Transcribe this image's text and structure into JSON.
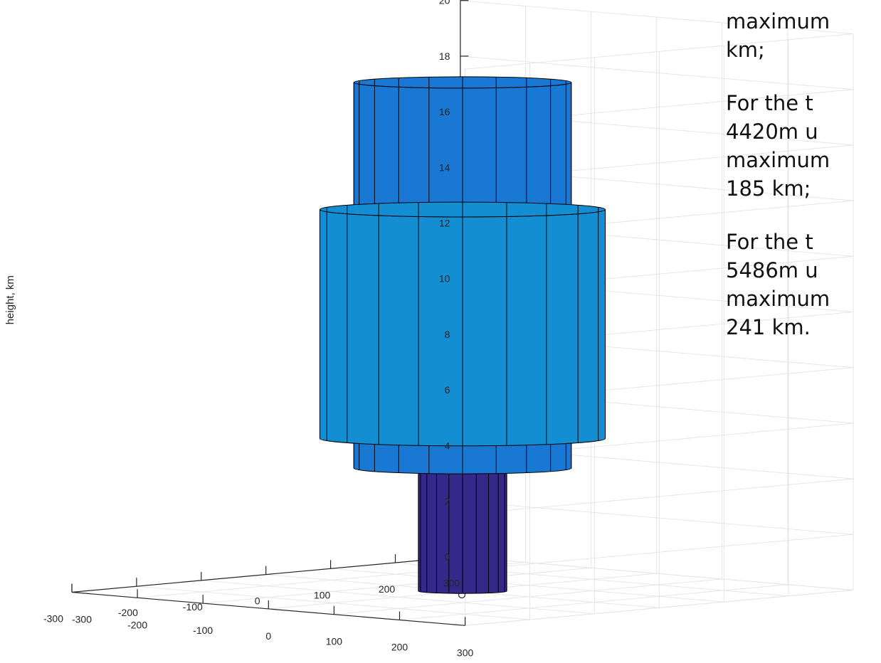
{
  "colors": {
    "background": "#ffffff",
    "grid": "#e6e6e6",
    "axis": "#262626",
    "edge": "#000000",
    "tick_text": "#262626",
    "side_text": "#111111"
  },
  "chart_data": {
    "type": "3d-surface",
    "xlabel": "",
    "ylabel": "",
    "zlabel": "height, km",
    "grid": true,
    "xlim": [
      -300,
      300
    ],
    "ylim": [
      -300,
      300
    ],
    "zlim": [
      0,
      20
    ],
    "front_axis_ticks": [
      -300,
      -200,
      -100,
      0,
      100,
      200,
      300
    ],
    "left_axis_ticks": [
      300,
      200,
      100,
      0,
      -100,
      -200,
      -300
    ],
    "z_ticks": [
      0,
      2,
      4,
      6,
      8,
      10,
      12,
      14,
      16,
      18,
      20
    ],
    "cylinders": [
      {
        "z_bottom": 0,
        "z_top": 4.42,
        "radius_km": 65,
        "color": "#35288a"
      },
      {
        "z_bottom": 4.42,
        "z_top": 18.29,
        "radius_km": 160,
        "color": "#1a78d5"
      },
      {
        "z_bottom": 5.49,
        "z_top": 13.72,
        "radius_km": 210,
        "color": "#138ed3"
      }
    ],
    "origin_marker": {
      "x": 0,
      "y": 0,
      "z": 0
    }
  },
  "side_text": {
    "paragraphs": [
      {
        "lines": [
          "maximum",
          "km;"
        ]
      },
      {
        "lines": [
          "For the t",
          "4420m u",
          "maximum",
          "185 km;"
        ]
      },
      {
        "lines": [
          "For the t",
          "5486m u",
          "maximum",
          "241 km."
        ]
      }
    ]
  }
}
